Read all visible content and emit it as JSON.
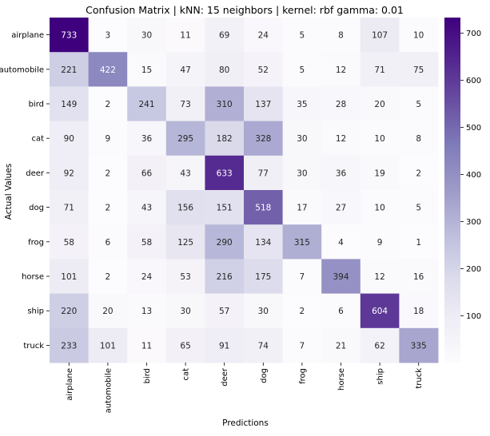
{
  "chart_data": {
    "type": "heatmap",
    "title": "Confusion Matrix | kNN: 15 neighbors | kernel: rbf gamma: 0.01",
    "xlabel": "Predictions",
    "ylabel": "Actual Values",
    "x_categories": [
      "airplane",
      "automobile",
      "bird",
      "cat",
      "deer",
      "dog",
      "frog",
      "horse",
      "ship",
      "truck"
    ],
    "y_categories": [
      "airplane",
      "automobile",
      "bird",
      "cat",
      "deer",
      "dog",
      "frog",
      "horse",
      "ship",
      "truck"
    ],
    "values": [
      [
        733,
        3,
        30,
        11,
        69,
        24,
        5,
        8,
        107,
        10
      ],
      [
        221,
        422,
        15,
        47,
        80,
        52,
        5,
        12,
        71,
        75
      ],
      [
        149,
        2,
        241,
        73,
        310,
        137,
        35,
        28,
        20,
        5
      ],
      [
        90,
        9,
        36,
        295,
        182,
        328,
        30,
        12,
        10,
        8
      ],
      [
        92,
        2,
        66,
        43,
        633,
        77,
        30,
        36,
        19,
        2
      ],
      [
        71,
        2,
        43,
        156,
        151,
        518,
        17,
        27,
        10,
        5
      ],
      [
        58,
        6,
        58,
        125,
        290,
        134,
        315,
        4,
        9,
        1
      ],
      [
        101,
        2,
        24,
        53,
        216,
        175,
        7,
        394,
        12,
        16
      ],
      [
        220,
        20,
        13,
        30,
        57,
        30,
        2,
        6,
        604,
        18
      ],
      [
        233,
        101,
        11,
        65,
        91,
        74,
        7,
        21,
        62,
        335
      ]
    ],
    "colorscale": "Purples",
    "color_range": [
      1,
      733
    ],
    "colorbar_ticks": [
      100,
      200,
      300,
      400,
      500,
      600,
      700
    ],
    "grid": false,
    "legend": "colorbar-right"
  }
}
